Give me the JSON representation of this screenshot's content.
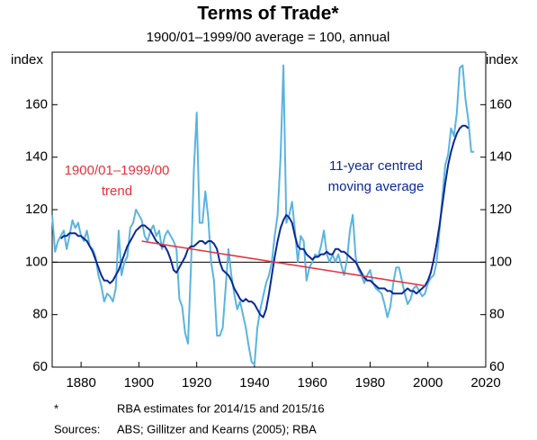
{
  "chart_data": {
    "type": "line",
    "title": "Terms of Trade*",
    "subtitle": "1900/01–1999/00 average = 100, annual",
    "y_label": "index",
    "y2_label": "index",
    "x": [
      1870,
      1871,
      1872,
      1873,
      1874,
      1875,
      1876,
      1877,
      1878,
      1879,
      1880,
      1881,
      1882,
      1883,
      1884,
      1885,
      1886,
      1887,
      1888,
      1889,
      1890,
      1891,
      1892,
      1893,
      1894,
      1895,
      1896,
      1897,
      1898,
      1899,
      1900,
      1901,
      1902,
      1903,
      1904,
      1905,
      1906,
      1907,
      1908,
      1909,
      1910,
      1911,
      1912,
      1913,
      1914,
      1915,
      1916,
      1917,
      1918,
      1919,
      1920,
      1921,
      1922,
      1923,
      1924,
      1925,
      1926,
      1927,
      1928,
      1929,
      1930,
      1931,
      1932,
      1933,
      1934,
      1935,
      1936,
      1937,
      1938,
      1939,
      1940,
      1941,
      1942,
      1943,
      1944,
      1945,
      1946,
      1947,
      1948,
      1949,
      1950,
      1951,
      1952,
      1953,
      1954,
      1955,
      1956,
      1957,
      1958,
      1959,
      1960,
      1961,
      1962,
      1963,
      1964,
      1965,
      1966,
      1967,
      1968,
      1969,
      1970,
      1971,
      1972,
      1973,
      1974,
      1975,
      1976,
      1977,
      1978,
      1979,
      1980,
      1981,
      1982,
      1983,
      1984,
      1985,
      1986,
      1987,
      1988,
      1989,
      1990,
      1991,
      1992,
      1993,
      1994,
      1995,
      1996,
      1997,
      1998,
      1999,
      2000,
      2001,
      2002,
      2003,
      2004,
      2005,
      2006,
      2007,
      2008,
      2009,
      2010,
      2011,
      2012,
      2013,
      2014,
      2015,
      2016
    ],
    "series": [
      {
        "name": "Terms of trade",
        "color": "#5ab4e0",
        "width": 2,
        "values": [
          118,
          104,
          108,
          110,
          112,
          105,
          110,
          116,
          113,
          115,
          110,
          108,
          112,
          106,
          105,
          102,
          95,
          91,
          85,
          88,
          87,
          85,
          90,
          112,
          95,
          100,
          102,
          113,
          115,
          120,
          118,
          116,
          110,
          108,
          112,
          114,
          110,
          112,
          105,
          110,
          112,
          110,
          108,
          105,
          86,
          83,
          73,
          69,
          97,
          135,
          157,
          115,
          115,
          127,
          117,
          100,
          93,
          72,
          72,
          75,
          90,
          105,
          95,
          88,
          82,
          85,
          80,
          75,
          68,
          62,
          61,
          75,
          82,
          87,
          92,
          95,
          100,
          110,
          118,
          140,
          175,
          115,
          118,
          123,
          112,
          100,
          110,
          108,
          93,
          98,
          100,
          103,
          102,
          106,
          112,
          103,
          100,
          103,
          100,
          103,
          99,
          95,
          101,
          112,
          118,
          102,
          97,
          95,
          92,
          95,
          97,
          92,
          90,
          89,
          88,
          84,
          79,
          83,
          92,
          98,
          98,
          93,
          88,
          84,
          86,
          90,
          91,
          89,
          87,
          88,
          92,
          94,
          95,
          100,
          112,
          125,
          137,
          141,
          151,
          148,
          157,
          174,
          175,
          162,
          154,
          142,
          142
        ]
      },
      {
        "name": "11-year centred moving average",
        "color": "#0a2896",
        "width": 2,
        "values": [
          null,
          null,
          null,
          109,
          110,
          110,
          111,
          111,
          111,
          110,
          110,
          109,
          108,
          106,
          104,
          101,
          98,
          95,
          93,
          93,
          92,
          93,
          95,
          97,
          100,
          103,
          106,
          108,
          110,
          112,
          113,
          114,
          114,
          113,
          112,
          110,
          108,
          107,
          106,
          106,
          104,
          101,
          97,
          96,
          98,
          100,
          102,
          105,
          106,
          106,
          107,
          108,
          108,
          107,
          108,
          108,
          107,
          105,
          100,
          97,
          96,
          95,
          93,
          90,
          88,
          86,
          85,
          86,
          85,
          85,
          84,
          82,
          80,
          79,
          82,
          88,
          95,
          102,
          108,
          113,
          116,
          118,
          117,
          115,
          110,
          106,
          105,
          105,
          103,
          102,
          101,
          102,
          102,
          103,
          103,
          104,
          103,
          103,
          105,
          105,
          104,
          104,
          103,
          102,
          101,
          100,
          98,
          96,
          94,
          93,
          93,
          92,
          91,
          90,
          90,
          90,
          89,
          89,
          88,
          88,
          88,
          88,
          89,
          90,
          89,
          89,
          88,
          89,
          90,
          91,
          93,
          96,
          101,
          107,
          114,
          122,
          130,
          137,
          142,
          146,
          149,
          151,
          152,
          152,
          151,
          null,
          null
        ]
      },
      {
        "name": "1900/01–1999/00 trend",
        "color": "#e8303a",
        "width": 1.5,
        "x": [
          1901,
          1999
        ],
        "values": [
          108,
          91
        ]
      }
    ],
    "annotations": [
      {
        "lines": [
          "1900/01–1999/00",
          "trend"
        ],
        "color": "#e8303a"
      },
      {
        "lines": [
          "11-year centred",
          "moving average"
        ],
        "color": "#0a2896"
      }
    ],
    "reference_line": 100,
    "xlim": [
      1870,
      2020
    ],
    "xticks": [
      1880,
      1900,
      1920,
      1940,
      1960,
      1980,
      2000,
      2020
    ],
    "ylim": [
      60,
      180
    ],
    "yticks": [
      60,
      80,
      100,
      120,
      140,
      160
    ],
    "y2lim": [
      60,
      180
    ],
    "y2ticks": [
      60,
      80,
      100,
      120,
      140,
      160
    ],
    "footnotes": [
      [
        "*",
        "RBA estimates for 2014/15 and 2015/16"
      ],
      [
        "Sources:",
        "ABS; Gillitzer and Kearns (2005); RBA"
      ]
    ]
  }
}
